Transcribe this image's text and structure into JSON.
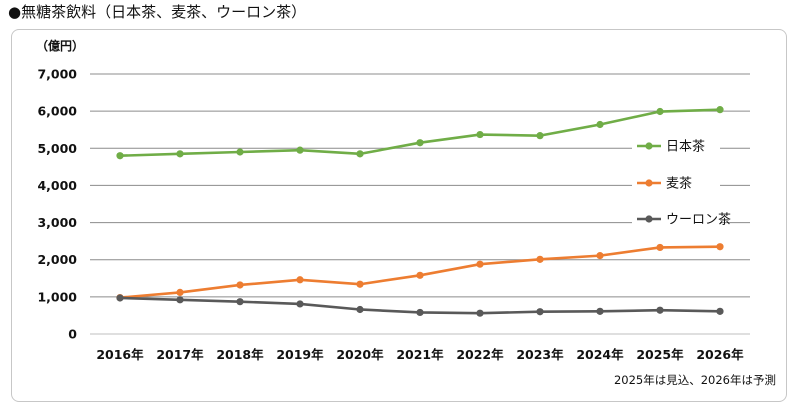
{
  "title": "●無糖茶飲料（日本茶、麦茶、ウーロン茶）",
  "chart_data": {
    "type": "line",
    "title": "●無糖茶飲料（日本茶、麦茶、ウーロン茶）",
    "ylabel": "（億円）",
    "xlabel": "",
    "ylim": [
      0,
      7000
    ],
    "yticks": [
      "0",
      "1,000",
      "2,000",
      "3,000",
      "4,000",
      "5,000",
      "6,000",
      "7,000"
    ],
    "grid": true,
    "legend_position": "right",
    "categories": [
      "2016年",
      "2017年",
      "2018年",
      "2019年",
      "2020年",
      "2021年",
      "2022年",
      "2023年",
      "2024年",
      "2025年",
      "2026年"
    ],
    "series": [
      {
        "name": "日本茶",
        "color": "#70ad47",
        "values": [
          4800,
          4850,
          4900,
          4950,
          4850,
          5150,
          5370,
          5340,
          5640,
          5990,
          6040
        ]
      },
      {
        "name": "麦茶",
        "color": "#ed7d31",
        "values": [
          980,
          1120,
          1320,
          1460,
          1340,
          1580,
          1880,
          2010,
          2110,
          2330,
          2350
        ]
      },
      {
        "name": "ウーロン茶",
        "color": "#595959",
        "values": [
          970,
          920,
          870,
          810,
          660,
          580,
          560,
          600,
          610,
          640,
          610
        ]
      }
    ],
    "note": "2025年は見込、2026年は予測"
  }
}
